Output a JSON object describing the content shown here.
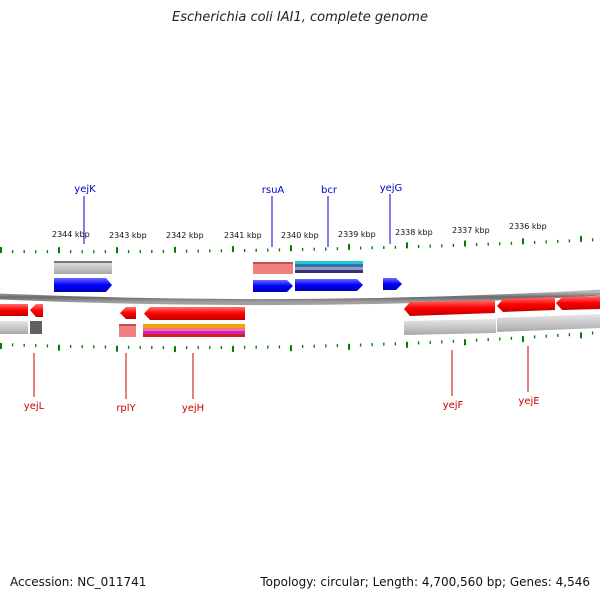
{
  "title": "Escherichia coli IAI1, complete genome",
  "footer": {
    "accession": "Accession: NC_011741",
    "summary": "Topology: circular; Length: 4,700,560 bp; Genes: 4,546"
  },
  "colors": {
    "forward_gene": "#0000ff",
    "reverse_gene": "#ff0000",
    "tick": "#008000",
    "label_forward": "#0000cc",
    "label_reverse": "#cc0000",
    "backbone": "#8a8a8a"
  },
  "scale_labels": [
    "2344 kbp",
    "2343 kbp",
    "2342 kbp",
    "2341 kbp",
    "2340 kbp",
    "2339 kbp",
    "2338 kbp",
    "2337 kbp",
    "2336 kbp"
  ],
  "genes_top": [
    "yejK",
    "rsuA",
    "bcr",
    "yejG"
  ],
  "genes_bottom": [
    "yejL",
    "rplY",
    "yejH",
    "yejF",
    "yejE"
  ]
}
